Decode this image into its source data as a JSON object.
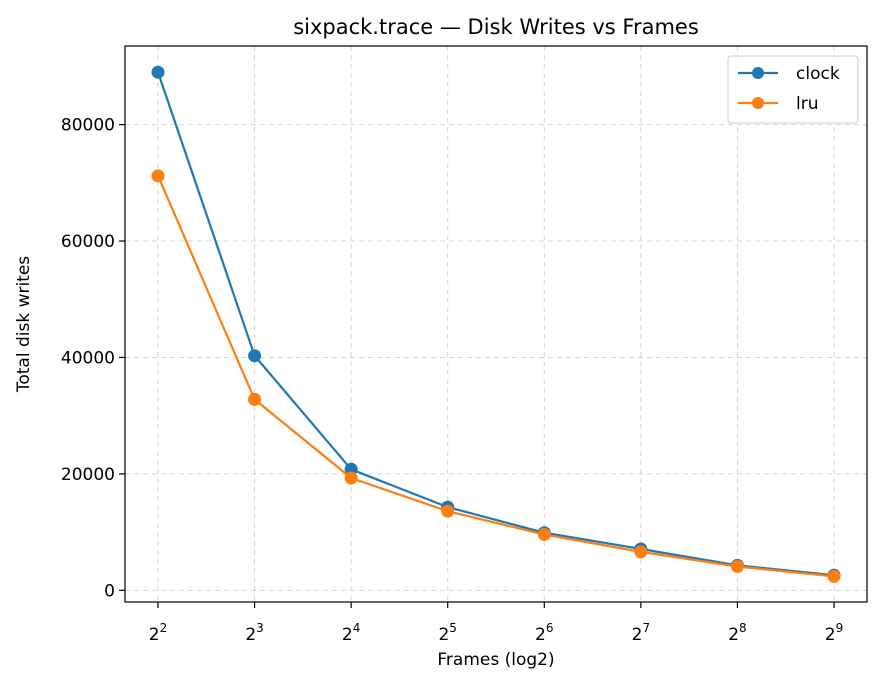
{
  "chart_data": {
    "type": "line",
    "title": "sixpack.trace — Disk Writes vs Frames",
    "xlabel": "Frames (log2)",
    "ylabel": "Total disk writes",
    "x_scale": "log2",
    "x": [
      4,
      8,
      16,
      32,
      64,
      128,
      256,
      512
    ],
    "x_tick_labels": [
      {
        "base": "2",
        "exp": "2"
      },
      {
        "base": "2",
        "exp": "3"
      },
      {
        "base": "2",
        "exp": "4"
      },
      {
        "base": "2",
        "exp": "5"
      },
      {
        "base": "2",
        "exp": "6"
      },
      {
        "base": "2",
        "exp": "7"
      },
      {
        "base": "2",
        "exp": "8"
      },
      {
        "base": "2",
        "exp": "9"
      }
    ],
    "y_ticks": [
      0,
      20000,
      40000,
      60000,
      80000
    ],
    "y_tick_labels": [
      "0",
      "20000",
      "40000",
      "60000",
      "80000"
    ],
    "ylim": [
      -2000,
      93500
    ],
    "grid": true,
    "legend_position": "top-right",
    "series": [
      {
        "name": "clock",
        "color": "#1f77b4",
        "marker": "circle",
        "values": [
          89000,
          40300,
          20800,
          14300,
          9900,
          7100,
          4300,
          2600
        ]
      },
      {
        "name": "lru",
        "color": "#ff7f0e",
        "marker": "circle",
        "values": [
          71200,
          32800,
          19300,
          13600,
          9600,
          6600,
          4100,
          2400
        ]
      }
    ]
  }
}
